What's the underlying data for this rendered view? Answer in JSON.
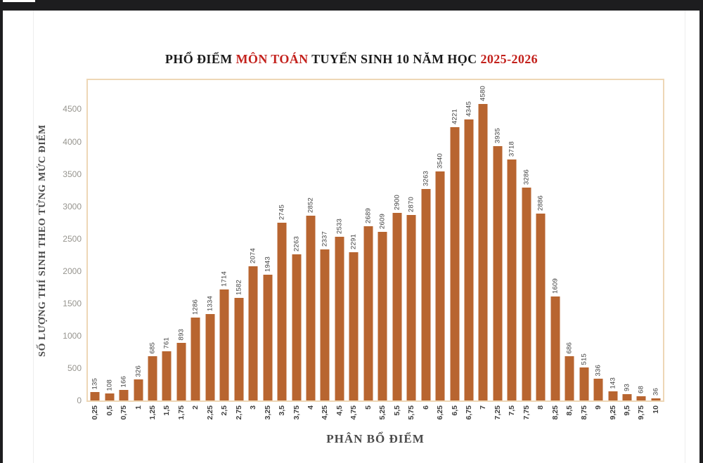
{
  "title": {
    "p1": "PHỔ ĐIỂM ",
    "p2": "MÔN TOÁN",
    "p3": " TUYỂN SINH 10 NĂM HỌC ",
    "p4": "2025-2026"
  },
  "colors": {
    "bar": "#b86530",
    "title_red": "#c3211c",
    "title_black": "#1b1b1b",
    "plot_border": "#eed7b6",
    "chrome_bar": "#1d1d1f",
    "y_tick_text": "#96948e",
    "value_label_text": "#3f3f3f",
    "axis_title_text": "#4a4a4a"
  },
  "chart_data": {
    "type": "bar",
    "title": "PHỔ ĐIỂM MÔN TOÁN TUYỂN SINH 10 NĂM HỌC 2025-2026",
    "xlabel": "PHÂN BỔ ĐIỂM",
    "ylabel": "SỐ LƯỢNG THÍ SINH THEO TỪNG MỨC ĐIỂM",
    "categories": [
      "0,25",
      "0,5",
      "0,75",
      "1",
      "1,25",
      "1,5",
      "1,75",
      "2",
      "2,25",
      "2,5",
      "2,75",
      "3",
      "3,25",
      "3,5",
      "3,75",
      "4",
      "4,25",
      "4,5",
      "4,75",
      "5",
      "5,25",
      "5,5",
      "5,75",
      "6",
      "6,25",
      "6,5",
      "6,75",
      "7",
      "7,25",
      "7,5",
      "7,75",
      "8",
      "8,25",
      "8,5",
      "8,75",
      "9",
      "9,25",
      "9,5",
      "9,75",
      "10"
    ],
    "values": [
      135,
      108,
      166,
      326,
      685,
      761,
      893,
      1286,
      1334,
      1714,
      1582,
      2074,
      1943,
      2745,
      2263,
      2852,
      2337,
      2533,
      2291,
      2689,
      2609,
      2900,
      2870,
      3263,
      3540,
      4221,
      4345,
      4580,
      3935,
      3718,
      3286,
      2886,
      1609,
      686,
      515,
      336,
      143,
      93,
      68,
      36
    ],
    "yticks": [
      0,
      500,
      1000,
      1500,
      2000,
      2500,
      3000,
      3500,
      4000,
      4500
    ],
    "ylim": [
      0,
      4950
    ],
    "grid": false,
    "legend": "none",
    "value_labels_rotated_90": true,
    "decimal_separator_in_x_labels": ","
  }
}
